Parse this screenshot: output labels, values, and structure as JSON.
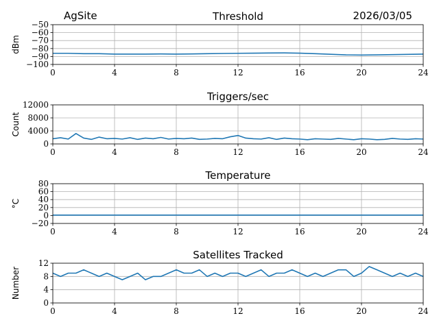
{
  "header": {
    "site": "AgSite",
    "date": "2026/03/05"
  },
  "chart_data": [
    {
      "type": "line",
      "title": "Threshold",
      "xlabel": "",
      "ylabel": "dBm",
      "xlim": [
        0,
        24
      ],
      "ylim": [
        -100,
        -50
      ],
      "xticks": [
        0,
        4,
        8,
        12,
        16,
        20,
        24
      ],
      "yticks": [
        -100,
        -90,
        -80,
        -70,
        -60,
        -50
      ],
      "ytick_labels": [
        "−100",
        "−90",
        "−80",
        "−70",
        "−60",
        "−50"
      ],
      "grid": true,
      "color": "#1f77b4",
      "series": [
        {
          "x": [
            0,
            1,
            2,
            3,
            4,
            5,
            6,
            7,
            8,
            9,
            10,
            11,
            12,
            13,
            14,
            15,
            16,
            17,
            18,
            19,
            20,
            21,
            22,
            23,
            24
          ],
          "y": [
            -86,
            -86,
            -86.5,
            -86.5,
            -87,
            -87,
            -87,
            -86.8,
            -87,
            -86.8,
            -86.5,
            -86.2,
            -86,
            -85.8,
            -85.6,
            -85.5,
            -85.8,
            -86.5,
            -87.2,
            -88,
            -88.2,
            -88,
            -87.7,
            -87.3,
            -87
          ]
        }
      ]
    },
    {
      "type": "line",
      "title": "Triggers/sec",
      "xlabel": "",
      "ylabel": "Count",
      "xlim": [
        0,
        24
      ],
      "ylim": [
        0,
        12000
      ],
      "xticks": [
        0,
        4,
        8,
        12,
        16,
        20,
        24
      ],
      "yticks": [
        0,
        4000,
        8000,
        12000
      ],
      "ytick_labels": [
        "0",
        "4000",
        "8000",
        "12000"
      ],
      "grid": true,
      "color": "#1f77b4",
      "series": [
        {
          "x": [
            0,
            0.5,
            1,
            1.5,
            2,
            2.5,
            3,
            3.5,
            4,
            4.5,
            5,
            5.5,
            6,
            6.5,
            7,
            7.5,
            8,
            8.5,
            9,
            9.5,
            10,
            10.5,
            11,
            11.5,
            12,
            12.5,
            13,
            13.5,
            14,
            14.5,
            15,
            15.5,
            16,
            16.5,
            17,
            17.5,
            18,
            18.5,
            19,
            19.5,
            20,
            20.5,
            21,
            21.5,
            22,
            22.5,
            23,
            23.5,
            24
          ],
          "y": [
            1600,
            1900,
            1500,
            3200,
            1800,
            1400,
            2100,
            1600,
            1700,
            1500,
            1900,
            1400,
            1800,
            1600,
            2000,
            1500,
            1700,
            1600,
            1800,
            1400,
            1500,
            1700,
            1600,
            2200,
            2600,
            1800,
            1600,
            1500,
            1900,
            1400,
            1800,
            1600,
            1500,
            1300,
            1600,
            1500,
            1400,
            1700,
            1500,
            1300,
            1600,
            1500,
            1300,
            1400,
            1700,
            1500,
            1400,
            1600,
            1500
          ]
        }
      ]
    },
    {
      "type": "line",
      "title": "Temperature",
      "xlabel": "",
      "ylabel": "°C",
      "xlim": [
        0,
        24
      ],
      "ylim": [
        -20,
        80
      ],
      "xticks": [
        0,
        4,
        8,
        12,
        16,
        20,
        24
      ],
      "yticks": [
        -20,
        0,
        20,
        40,
        60,
        80
      ],
      "ytick_labels": [
        "−20",
        "0",
        "20",
        "40",
        "60",
        "80"
      ],
      "grid": true,
      "color": "#1f77b4",
      "series": [
        {
          "x": [
            0,
            24
          ],
          "y": [
            1,
            1
          ]
        }
      ]
    },
    {
      "type": "line",
      "title": "Satellites Tracked",
      "xlabel": "",
      "ylabel": "Number",
      "xlim": [
        0,
        24
      ],
      "ylim": [
        0,
        12
      ],
      "xticks": [
        0,
        4,
        8,
        12,
        16,
        20,
        24
      ],
      "yticks": [
        0,
        4,
        8,
        12
      ],
      "ytick_labels": [
        "0",
        "4",
        "8",
        "12"
      ],
      "grid": true,
      "color": "#1f77b4",
      "series": [
        {
          "x": [
            0,
            0.5,
            1,
            1.5,
            2,
            2.5,
            3,
            3.5,
            4,
            4.5,
            5,
            5.5,
            6,
            6.5,
            7,
            7.5,
            8,
            8.5,
            9,
            9.5,
            10,
            10.5,
            11,
            11.5,
            12,
            12.5,
            13,
            13.5,
            14,
            14.5,
            15,
            15.5,
            16,
            16.5,
            17,
            17.5,
            18,
            18.5,
            19,
            19.5,
            20,
            20.5,
            21,
            21.5,
            22,
            22.5,
            23,
            23.5,
            24
          ],
          "y": [
            9,
            8,
            9,
            9,
            10,
            9,
            8,
            9,
            8,
            7,
            8,
            9,
            7,
            8,
            8,
            9,
            10,
            9,
            9,
            10,
            8,
            9,
            8,
            9,
            9,
            8,
            9,
            10,
            8,
            9,
            9,
            10,
            9,
            8,
            9,
            8,
            9,
            10,
            10,
            8,
            9,
            11,
            10,
            9,
            8,
            9,
            8,
            9,
            8
          ]
        }
      ]
    }
  ]
}
